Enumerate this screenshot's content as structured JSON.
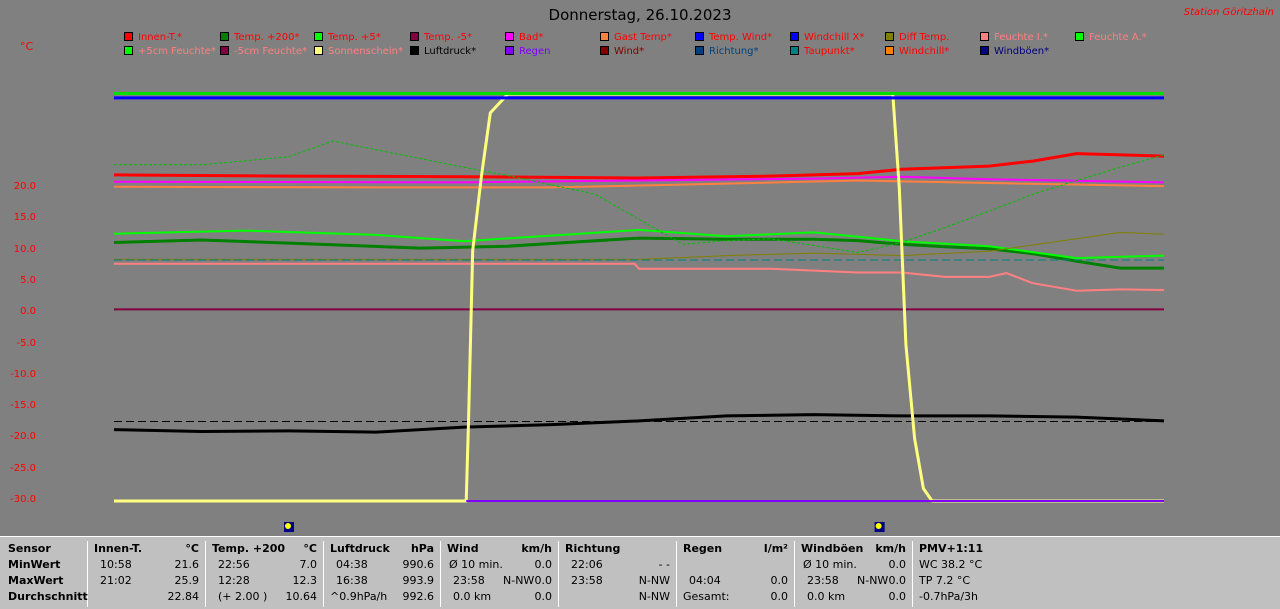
{
  "header": {
    "title": "Donnerstag, 26.10.2023",
    "station": "Station Göritzhain",
    "unit": "°C"
  },
  "legend": [
    {
      "label": "Innen-T.*",
      "color": "#ff0000",
      "text": "#ff0000"
    },
    {
      "label": "Temp. +200*",
      "color": "#008000",
      "text": "#ff0000"
    },
    {
      "label": "Temp. +5*",
      "color": "#00ff00",
      "text": "#ff0000"
    },
    {
      "label": "Temp. -5*",
      "color": "#800040",
      "text": "#ff0000"
    },
    {
      "label": "Bad*",
      "color": "#ff00ff",
      "text": "#ff0000"
    },
    {
      "label": "Gast Temp*",
      "color": "#ff8040",
      "text": "#ff0000"
    },
    {
      "label": "Temp. Wind*",
      "color": "#0000ff",
      "text": "#ff0000"
    },
    {
      "label": "Windchill X*",
      "color": "#0000ff",
      "text": "#ff0000"
    },
    {
      "label": "Diff Temp.",
      "color": "#808000",
      "text": "#ff0000"
    },
    {
      "label": "Feuchte I.*",
      "color": "#ff8080",
      "text": "#ff8080"
    },
    {
      "label": "Feuchte A.*",
      "color": "#00ff00",
      "text": "#ff8080"
    },
    {
      "label": "+5cm Feuchte*",
      "color": "#00ff00",
      "text": "#ff8080"
    },
    {
      "label": "-5cm Feuchte*",
      "color": "#800040",
      "text": "#ff8080"
    },
    {
      "label": "Sonnenschein*",
      "color": "#ffff80",
      "text": "#ff8080"
    },
    {
      "label": "Luftdruck*",
      "color": "#000000",
      "text": "#000000"
    },
    {
      "label": "Regen",
      "color": "#8000ff",
      "text": "#8000ff"
    },
    {
      "label": "Wind*",
      "color": "#800000",
      "text": "#800000"
    },
    {
      "label": "Richtung*",
      "color": "#004080",
      "text": "#004080"
    },
    {
      "label": "Taupunkt*",
      "color": "#008080",
      "text": "#ff0000"
    },
    {
      "label": "Windchill*",
      "color": "#ff8000",
      "text": "#ff0000"
    },
    {
      "label": "Windböen*",
      "color": "#000080",
      "text": "#000080"
    }
  ],
  "chart_data": {
    "type": "line",
    "title": "Donnerstag, 26.10.2023",
    "ylabel": "°C",
    "ylim": [
      -30,
      35
    ],
    "yticks": [
      "20.0",
      "15.0",
      "10.0",
      "5.0",
      "0.0",
      "-5.0",
      "-10.0",
      "-15.0",
      "-20.0",
      "-25.0",
      "-30.0"
    ],
    "ytick_values": [
      20,
      15,
      10,
      5,
      0,
      -5,
      -10,
      -15,
      -20,
      -25,
      -30
    ],
    "x_hours": [
      0,
      24
    ],
    "series": [
      {
        "name": "Innen-T.*",
        "color": "#ff0000",
        "width": 3,
        "x": [
          0,
          4,
          8,
          12,
          15,
          17,
          18,
          20,
          21,
          22,
          24
        ],
        "y": [
          22.1,
          21.9,
          21.8,
          21.6,
          21.9,
          22.3,
          23,
          23.5,
          24.3,
          25.5,
          25.1
        ]
      },
      {
        "name": "Temp. +200*",
        "color": "#008000",
        "width": 3,
        "x": [
          0,
          2,
          4,
          7,
          9,
          12,
          14,
          16,
          17,
          18,
          19,
          20,
          21,
          22,
          23,
          24
        ],
        "y": [
          11.3,
          11.7,
          11.2,
          10.4,
          10.7,
          12,
          11.8,
          11.8,
          11.6,
          11,
          10.6,
          10.3,
          9.5,
          8.3,
          7.2,
          7.2
        ]
      },
      {
        "name": "Temp. +5*",
        "color": "#00ff00",
        "width": 2,
        "x": [
          0,
          3,
          6,
          8,
          12,
          14,
          16,
          17,
          18,
          20,
          22,
          24
        ],
        "y": [
          12.7,
          13.2,
          12.5,
          11.5,
          13.3,
          12.3,
          12.9,
          12.2,
          11.5,
          10.7,
          8.8,
          9.2
        ]
      },
      {
        "name": "Temp. -5*",
        "color": "#800040",
        "width": 2,
        "x": [
          0,
          24
        ],
        "y": [
          0.6,
          0.6
        ]
      },
      {
        "name": "Bad*",
        "color": "#ff00ff",
        "width": 2,
        "x": [
          0,
          8,
          12,
          16,
          18,
          20,
          24
        ],
        "y": [
          21,
          20.9,
          21.2,
          21.5,
          21.8,
          21.4,
          20.9
        ]
      },
      {
        "name": "Gast Temp*",
        "color": "#ff8040",
        "width": 2,
        "x": [
          0,
          6,
          10,
          14,
          17,
          20,
          24
        ],
        "y": [
          20.2,
          20.1,
          20.1,
          20.7,
          21.2,
          20.8,
          20.3
        ]
      },
      {
        "name": "Feuchte I.*",
        "color": "#ff8080",
        "width": 2,
        "x": [
          0,
          11.9,
          12,
          15,
          16,
          17,
          18,
          19,
          20,
          20.4,
          21,
          22,
          23,
          24
        ],
        "y": [
          7.9,
          7.9,
          7.1,
          7.1,
          6.8,
          6.5,
          6.5,
          5.8,
          5.8,
          6.4,
          4.8,
          3.6,
          3.8,
          3.7
        ]
      },
      {
        "name": "Feuchte A.*",
        "color": "#00c000",
        "width": 1,
        "dash": "3,2",
        "x": [
          0,
          2,
          4,
          5,
          8,
          9,
          11,
          12,
          13,
          14,
          15,
          17,
          18,
          19,
          20,
          21,
          22,
          23,
          24
        ],
        "y": [
          23.7,
          23.7,
          25,
          27.5,
          23.3,
          22,
          19,
          15,
          11,
          11.6,
          11.9,
          9.7,
          11.3,
          13.7,
          16.3,
          19,
          21.2,
          23.3,
          25.3
        ]
      },
      {
        "name": "Diff Temp.",
        "color": "#808000",
        "width": 1,
        "x": [
          0,
          8,
          12,
          14,
          16,
          18,
          20,
          22,
          23,
          24
        ],
        "y": [
          8.6,
          8.6,
          8.6,
          9.2,
          9.6,
          9.2,
          9.9,
          11.9,
          12.9,
          12.6
        ]
      },
      {
        "name": "Taupunkt*",
        "color": "#008080",
        "width": 1,
        "dash": "8,4",
        "x": [
          0,
          24
        ],
        "y": [
          8.5,
          8.5
        ]
      },
      {
        "name": "Luftdruck*",
        "color": "#000000",
        "width": 3,
        "x": [
          0,
          2,
          4,
          6,
          8,
          10,
          12,
          14,
          16,
          18,
          20,
          22,
          24
        ],
        "y": [
          -18.6,
          -18.9,
          -18.8,
          -19,
          -18.2,
          -17.8,
          -17.2,
          -16.4,
          -16.2,
          -16.4,
          -16.4,
          -16.6,
          -17.2
        ]
      },
      {
        "name": "Luftdruck-Mittel",
        "color": "#000000",
        "width": 1,
        "dash": "8,4",
        "x": [
          0,
          24
        ],
        "y": [
          -17.3,
          -17.3
        ]
      },
      {
        "name": "Sonnenschein*",
        "color": "#ffff80",
        "width": 3,
        "x": [
          0,
          8.05,
          8.1,
          8.2,
          8.4,
          8.6,
          9,
          17.8,
          17.95,
          18.1,
          18.3,
          18.5,
          18.7,
          24
        ],
        "y": [
          -30,
          -30,
          -18,
          10,
          22,
          32,
          35,
          35,
          20,
          -5,
          -20,
          -28,
          -30,
          -30
        ]
      },
      {
        "name": "Regen",
        "color": "#8000ff",
        "width": 2,
        "x": [
          8.05,
          24
        ],
        "y": [
          -30,
          -30
        ]
      },
      {
        "name": "Temp. Wind*",
        "color": "#0000ff",
        "width": 3,
        "x": [
          0,
          24
        ],
        "y": [
          34.4,
          34.4
        ]
      },
      {
        "name": "Windchill X*",
        "color": "#00e000",
        "width": 3,
        "x": [
          0,
          24
        ],
        "y": [
          35.1,
          35.1
        ]
      }
    ],
    "markers_hours": [
      4,
      17.5
    ]
  },
  "stats": {
    "sensor": {
      "head": "Sensor",
      "rows": [
        "MinWert",
        "MaxWert",
        "Durchschnitt"
      ]
    },
    "innen": {
      "head": "Innen-T.",
      "unit": "°C",
      "rows": [
        [
          "10:58",
          "21.6"
        ],
        [
          "21:02",
          "25.9"
        ],
        [
          "",
          "22.84"
        ]
      ]
    },
    "temp200": {
      "head": "Temp. +200",
      "unit": "°C",
      "rows": [
        [
          "22:56",
          "7.0"
        ],
        [
          "12:28",
          "12.3"
        ],
        [
          "(+ 2.00 )",
          "10.64"
        ]
      ]
    },
    "luftdruck": {
      "head": "Luftdruck",
      "unit": "hPa",
      "rows": [
        [
          "04:38",
          "990.6"
        ],
        [
          "16:38",
          "993.9"
        ],
        [
          "^0.9hPa/h",
          "992.6"
        ]
      ]
    },
    "wind": {
      "head": "Wind",
      "unit": "km/h",
      "rows": [
        [
          "Ø 10 min.",
          "",
          "0.0"
        ],
        [
          "23:58",
          "N-NW",
          "0.0"
        ],
        [
          "0.0 km",
          "",
          "0.0"
        ]
      ]
    },
    "richtung": {
      "head": "Richtung",
      "unit": "",
      "rows": [
        [
          "22:06",
          "- -"
        ],
        [
          "23:58",
          "N-NW"
        ],
        [
          "",
          "N-NW"
        ]
      ]
    },
    "regen": {
      "head": "Regen",
      "unit": "l/m²",
      "rows": [
        [
          "",
          ""
        ],
        [
          "04:04",
          "0.0"
        ],
        [
          "Gesamt:",
          "0.0"
        ]
      ]
    },
    "windboeen": {
      "head": "Windböen",
      "unit": "km/h",
      "rows": [
        [
          "Ø 10 min.",
          "",
          "0.0"
        ],
        [
          "23:58",
          "N-NW",
          "0.0"
        ],
        [
          "0.0 km",
          "",
          "0.0"
        ]
      ]
    },
    "pmv": {
      "head": "PMV+1:11",
      "rows": [
        "WC 38.2 °C",
        "TP 7.2 °C",
        "-0.7hPa/3h"
      ]
    }
  }
}
